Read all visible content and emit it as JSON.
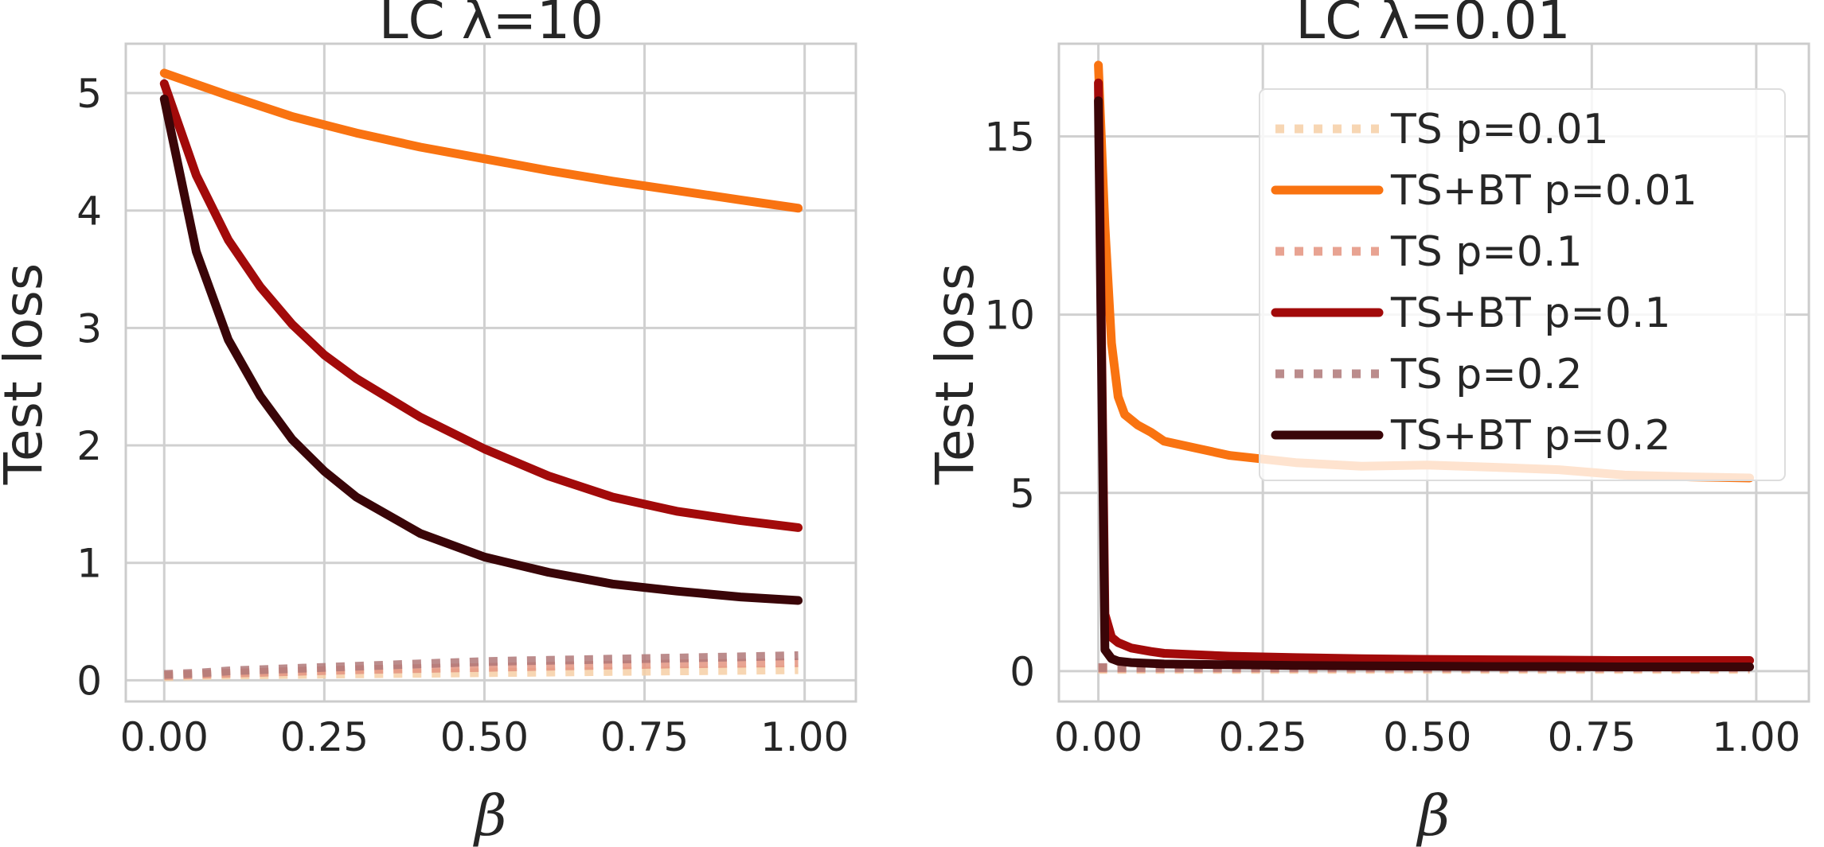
{
  "chart_data": [
    {
      "type": "line",
      "title": "LC λ=10",
      "xlabel": "β",
      "ylabel": "Test loss",
      "xlim": [
        -0.06,
        1.08
      ],
      "ylim": [
        -0.18,
        5.42
      ],
      "xticks": [
        0.0,
        0.25,
        0.5,
        0.75,
        1.0
      ],
      "xtick_labels": [
        "0.00",
        "0.25",
        "0.50",
        "0.75",
        "1.00"
      ],
      "yticks": [
        0,
        1,
        2,
        3,
        4,
        5
      ],
      "ytick_labels": [
        "0",
        "1",
        "2",
        "3",
        "4",
        "5"
      ],
      "grid": true,
      "series": [
        {
          "name": "TS p=0.01",
          "style": "dotted",
          "color": "#f6cfa6",
          "x": [
            0,
            0.05,
            0.1,
            0.2,
            0.3,
            0.4,
            0.5,
            0.6,
            0.7,
            0.8,
            0.9,
            0.99
          ],
          "y": [
            0.03,
            0.04,
            0.045,
            0.05,
            0.055,
            0.06,
            0.065,
            0.07,
            0.075,
            0.08,
            0.085,
            0.09
          ]
        },
        {
          "name": "TS+BT p=0.01",
          "style": "solid",
          "color": "#f97311",
          "x": [
            0,
            0.1,
            0.2,
            0.3,
            0.4,
            0.5,
            0.6,
            0.7,
            0.8,
            0.9,
            0.99
          ],
          "y": [
            5.17,
            4.98,
            4.8,
            4.66,
            4.54,
            4.44,
            4.34,
            4.25,
            4.17,
            4.09,
            4.02
          ]
        },
        {
          "name": "TS p=0.1",
          "style": "dotted",
          "color": "#e49480",
          "x": [
            0,
            0.05,
            0.1,
            0.2,
            0.3,
            0.4,
            0.5,
            0.6,
            0.7,
            0.8,
            0.9,
            0.99
          ],
          "y": [
            0.04,
            0.05,
            0.06,
            0.075,
            0.09,
            0.1,
            0.11,
            0.12,
            0.13,
            0.14,
            0.145,
            0.15
          ]
        },
        {
          "name": "TS+BT p=0.1",
          "style": "solid",
          "color": "#a20a0a",
          "x": [
            0,
            0.05,
            0.1,
            0.15,
            0.2,
            0.25,
            0.3,
            0.4,
            0.5,
            0.6,
            0.7,
            0.8,
            0.9,
            0.99
          ],
          "y": [
            5.08,
            4.3,
            3.75,
            3.35,
            3.03,
            2.77,
            2.57,
            2.24,
            1.97,
            1.74,
            1.56,
            1.44,
            1.36,
            1.3
          ]
        },
        {
          "name": "TS p=0.2",
          "style": "dotted",
          "color": "#b07878",
          "x": [
            0,
            0.05,
            0.1,
            0.2,
            0.3,
            0.4,
            0.5,
            0.6,
            0.7,
            0.8,
            0.9,
            0.99
          ],
          "y": [
            0.05,
            0.06,
            0.08,
            0.1,
            0.12,
            0.14,
            0.16,
            0.17,
            0.18,
            0.19,
            0.2,
            0.21
          ]
        },
        {
          "name": "TS+BT p=0.2",
          "style": "solid",
          "color": "#3a0508",
          "x": [
            0,
            0.05,
            0.1,
            0.15,
            0.2,
            0.25,
            0.3,
            0.4,
            0.5,
            0.6,
            0.7,
            0.8,
            0.9,
            0.99
          ],
          "y": [
            4.95,
            3.65,
            2.9,
            2.42,
            2.05,
            1.78,
            1.56,
            1.25,
            1.05,
            0.92,
            0.82,
            0.76,
            0.71,
            0.68
          ]
        }
      ]
    },
    {
      "type": "line",
      "title": "LC λ=0.01",
      "xlabel": "β",
      "ylabel": "Test loss",
      "xlim": [
        -0.06,
        1.08
      ],
      "ylim": [
        -0.85,
        17.6
      ],
      "xticks": [
        0.0,
        0.25,
        0.5,
        0.75,
        1.0
      ],
      "xtick_labels": [
        "0.00",
        "0.25",
        "0.50",
        "0.75",
        "1.00"
      ],
      "yticks": [
        0,
        5,
        10,
        15
      ],
      "ytick_labels": [
        "0",
        "5",
        "10",
        "15"
      ],
      "grid": true,
      "legend": "upper right",
      "series": [
        {
          "name": "TS p=0.01",
          "style": "dotted",
          "color": "#f6cfa6",
          "x": [
            0,
            0.1,
            0.2,
            0.3,
            0.4,
            0.5,
            0.6,
            0.7,
            0.8,
            0.9,
            0.99
          ],
          "y": [
            0.05,
            0.05,
            0.05,
            0.05,
            0.05,
            0.05,
            0.05,
            0.05,
            0.05,
            0.05,
            0.05
          ]
        },
        {
          "name": "TS+BT p=0.01",
          "style": "solid",
          "color": "#f97311",
          "x": [
            0,
            0.01,
            0.02,
            0.03,
            0.04,
            0.06,
            0.08,
            0.1,
            0.15,
            0.2,
            0.3,
            0.4,
            0.5,
            0.6,
            0.7,
            0.8,
            0.9,
            0.99
          ],
          "y": [
            17.0,
            12.5,
            9.2,
            7.7,
            7.2,
            6.9,
            6.7,
            6.45,
            6.25,
            6.05,
            5.85,
            5.75,
            5.78,
            5.72,
            5.65,
            5.5,
            5.45,
            5.42
          ]
        },
        {
          "name": "TS p=0.1",
          "style": "dotted",
          "color": "#e49480",
          "x": [
            0,
            0.1,
            0.2,
            0.3,
            0.4,
            0.5,
            0.6,
            0.7,
            0.8,
            0.9,
            0.99
          ],
          "y": [
            0.08,
            0.08,
            0.08,
            0.08,
            0.08,
            0.08,
            0.08,
            0.08,
            0.08,
            0.08,
            0.08
          ]
        },
        {
          "name": "TS+BT p=0.1",
          "style": "solid",
          "color": "#a20a0a",
          "x": [
            0,
            0.01,
            0.02,
            0.03,
            0.05,
            0.08,
            0.1,
            0.2,
            0.3,
            0.4,
            0.5,
            0.6,
            0.7,
            0.8,
            0.9,
            0.99
          ],
          "y": [
            16.5,
            1.6,
            0.95,
            0.8,
            0.65,
            0.55,
            0.5,
            0.42,
            0.38,
            0.35,
            0.33,
            0.32,
            0.31,
            0.3,
            0.3,
            0.3
          ]
        },
        {
          "name": "TS p=0.2",
          "style": "dotted",
          "color": "#b07878",
          "x": [
            0,
            0.1,
            0.2,
            0.3,
            0.4,
            0.5,
            0.6,
            0.7,
            0.8,
            0.9,
            0.99
          ],
          "y": [
            0.1,
            0.1,
            0.1,
            0.1,
            0.1,
            0.1,
            0.1,
            0.1,
            0.1,
            0.1,
            0.1
          ]
        },
        {
          "name": "TS+BT p=0.2",
          "style": "solid",
          "color": "#3a0508",
          "x": [
            0,
            0.01,
            0.02,
            0.03,
            0.05,
            0.1,
            0.2,
            0.3,
            0.4,
            0.5,
            0.6,
            0.7,
            0.8,
            0.9,
            0.99
          ],
          "y": [
            16.0,
            0.6,
            0.35,
            0.28,
            0.24,
            0.2,
            0.18,
            0.16,
            0.15,
            0.14,
            0.13,
            0.13,
            0.12,
            0.12,
            0.12
          ]
        }
      ]
    }
  ]
}
